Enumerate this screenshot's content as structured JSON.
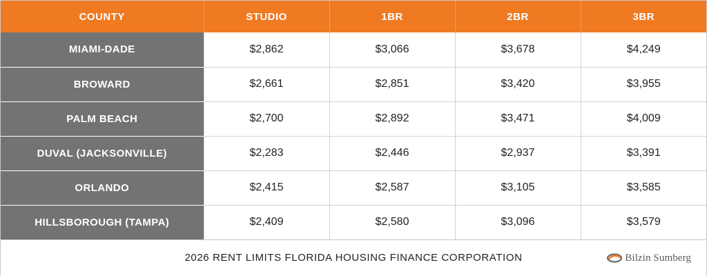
{
  "table": {
    "headers": [
      "COUNTY",
      "STUDIO",
      "1BR",
      "2BR",
      "3BR"
    ],
    "rows": [
      {
        "county": "MIAMI-DADE",
        "values": [
          "$2,862",
          "$3,066",
          "$3,678",
          "$4,249"
        ]
      },
      {
        "county": "BROWARD",
        "values": [
          "$2,661",
          "$2,851",
          "$3,420",
          "$3,955"
        ]
      },
      {
        "county": "PALM BEACH",
        "values": [
          "$2,700",
          "$2,892",
          "$3,471",
          "$4,009"
        ]
      },
      {
        "county": "DUVAL (JACKSONVILLE)",
        "values": [
          "$2,283",
          "$2,446",
          "$2,937",
          "$3,391"
        ]
      },
      {
        "county": "ORLANDO",
        "values": [
          "$2,415",
          "$2,587",
          "$3,105",
          "$3,585"
        ]
      },
      {
        "county": "HILLSBOROUGH (TAMPA)",
        "values": [
          "$2,409",
          "$2,580",
          "$3,096",
          "$3,579"
        ]
      }
    ]
  },
  "footer": {
    "title": "2026 RENT LIMITS FLORIDA HOUSING FINANCE CORPORATION",
    "logo_text": "Bilzin Sumberg",
    "logo_icon": "swirl-logo-icon"
  },
  "colors": {
    "header_orange": "#ef7a22",
    "county_gray": "#737373",
    "logo_orange": "#ef7a22",
    "logo_gray": "#6b6b6b"
  }
}
